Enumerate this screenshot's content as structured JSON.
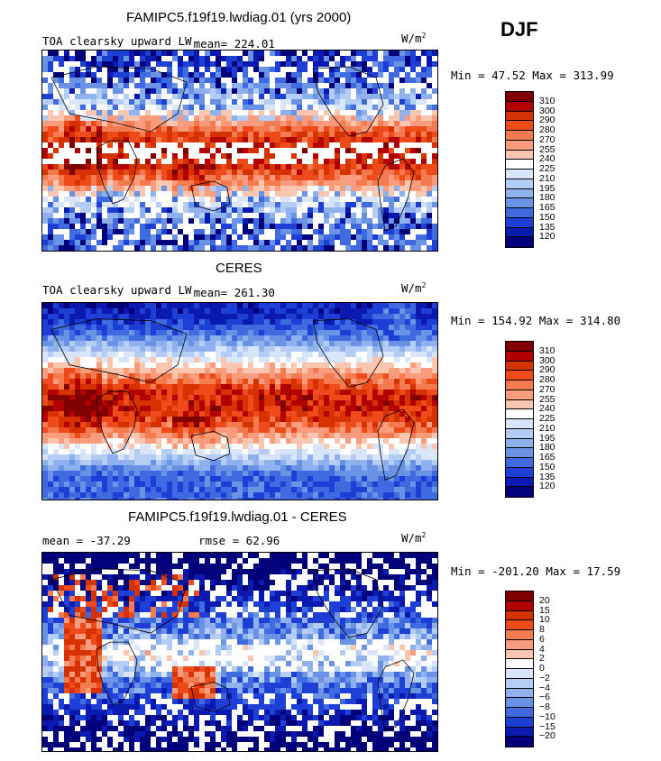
{
  "season": "DJF",
  "units_base": "W/m",
  "units_exp": "2",
  "chart_data": [
    {
      "type": "heatmap",
      "title": "FAMIPC5.f19f19.lwdiag.01 (yrs 2000)",
      "field": "TOA clearsky upward LW",
      "mean_text": "mean= 224.01",
      "minmax_text": "Min =  47.52 Max = 313.99",
      "min": 47.52,
      "max": 313.99,
      "mean": 224.01,
      "levels": [
        310,
        300,
        290,
        280,
        270,
        255,
        240,
        225,
        210,
        195,
        180,
        165,
        150,
        135,
        120
      ],
      "colors": [
        "#800000",
        "#b30000",
        "#d63200",
        "#ee4a1a",
        "#f47a4f",
        "#f99c7e",
        "#fbc6b0",
        "#ffffff",
        "#d9e6fa",
        "#b4cdf5",
        "#8fb1ee",
        "#6a93e6",
        "#3f6ae0",
        "#1d3fd6",
        "#0a1ab0",
        "#00007a"
      ]
    },
    {
      "type": "heatmap",
      "title": "CERES",
      "field": "TOA clearsky upward LW",
      "mean_text": "mean= 261.30",
      "minmax_text": "Min = 154.92 Max = 314.80",
      "min": 154.92,
      "max": 314.8,
      "mean": 261.3,
      "levels": [
        310,
        300,
        290,
        280,
        270,
        255,
        240,
        225,
        210,
        195,
        180,
        165,
        150,
        135,
        120
      ],
      "colors": [
        "#800000",
        "#b30000",
        "#d63200",
        "#ee4a1a",
        "#f47a4f",
        "#f99c7e",
        "#fbc6b0",
        "#ffffff",
        "#d9e6fa",
        "#b4cdf5",
        "#8fb1ee",
        "#6a93e6",
        "#3f6ae0",
        "#1d3fd6",
        "#0a1ab0",
        "#00007a"
      ]
    },
    {
      "type": "heatmap",
      "title": "FAMIPC5.f19f19.lwdiag.01 - CERES",
      "mean_text": "mean = -37.29",
      "rmse_text": "rmse =   62.96",
      "minmax_text": "Min = -201.20 Max =  17.59",
      "min": -201.2,
      "max": 17.59,
      "mean": -37.29,
      "rmse": 62.96,
      "levels": [
        "20",
        "15",
        "10",
        "8",
        "6",
        "4",
        "2",
        "0",
        "−2",
        "−4",
        "−6",
        "−8",
        "−10",
        "−15",
        "−20"
      ],
      "colors": [
        "#800000",
        "#b30000",
        "#d63200",
        "#ee4a1a",
        "#f47a4f",
        "#f99c7e",
        "#fbc6b0",
        "#ffffff",
        "#d9e6fa",
        "#b4cdf5",
        "#8fb1ee",
        "#6a93e6",
        "#3f6ae0",
        "#1d3fd6",
        "#0a1ab0",
        "#00007a"
      ]
    }
  ]
}
